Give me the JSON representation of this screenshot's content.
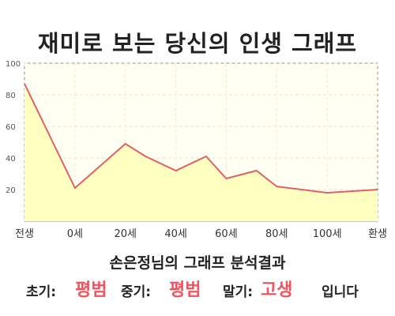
{
  "title": "재미로 보는 당신의 인생 그래프",
  "chart_data": {
    "type": "area",
    "x": [
      -20,
      0,
      20,
      28,
      40,
      52,
      60,
      72,
      80,
      100,
      120
    ],
    "y": [
      87,
      21,
      49,
      41,
      32,
      41,
      27,
      32,
      22,
      18,
      20
    ],
    "ylim": [
      0,
      100
    ],
    "yticks": [
      20,
      40,
      60,
      80,
      100
    ],
    "xticks": [
      {
        "x": -20,
        "label": "전생"
      },
      {
        "x": 0,
        "label": "0세"
      },
      {
        "x": 20,
        "label": "20세"
      },
      {
        "x": 40,
        "label": "40세"
      },
      {
        "x": 60,
        "label": "60세"
      },
      {
        "x": 80,
        "label": "80세"
      },
      {
        "x": 100,
        "label": "100세"
      },
      {
        "x": 120,
        "label": "환생"
      }
    ],
    "grid": true,
    "line_color": "#e0606a",
    "fill_color": "#ffffc0"
  },
  "summary": {
    "text": "손은정님의 그래프 분석결과"
  },
  "result": {
    "early_label": "초기:",
    "early_value": "평범",
    "mid_label": "중기:",
    "mid_value": "평범",
    "late_label": "말기:",
    "late_value": "고생",
    "suffix": "입니다"
  },
  "colors": {
    "accent": "#f0545f",
    "plot_background": "#fffff0"
  }
}
